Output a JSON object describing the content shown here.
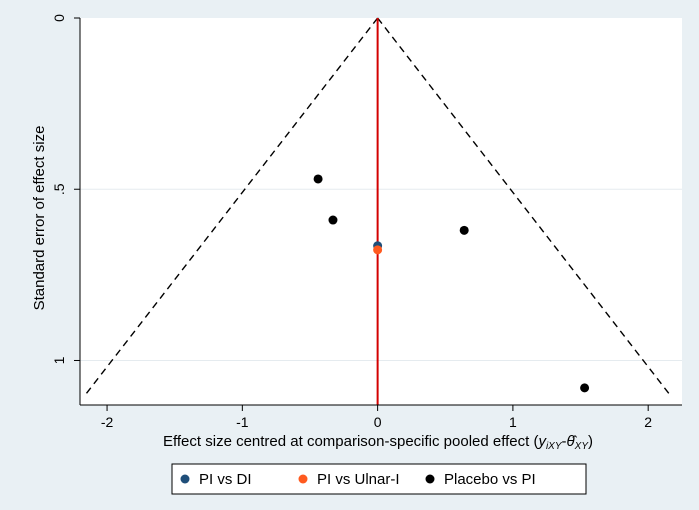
{
  "chart_data": {
    "type": "scatter",
    "title": "",
    "xlabel_main": "Effect size centred at comparison-specific pooled effect (",
    "xlabel_formula": "y",
    "xlabel_sub1": "iXY",
    "xlabel_minus": "-",
    "xlabel_sub2": "XY",
    "xlabel_close": ")",
    "ylabel": "Standard error of effect size",
    "xlim": [
      -2.2,
      2.25
    ],
    "ylim": [
      0,
      1.13
    ],
    "y_reversed": true,
    "xticks": [
      {
        "value": -2,
        "label": "-2"
      },
      {
        "value": -1,
        "label": "-1"
      },
      {
        "value": 0,
        "label": "0"
      },
      {
        "value": 1,
        "label": "1"
      },
      {
        "value": 2,
        "label": "2"
      }
    ],
    "yticks": [
      {
        "value": 0,
        "label": "0"
      },
      {
        "value": 0.5,
        "label": ".5"
      },
      {
        "value": 1,
        "label": "1"
      }
    ],
    "grid": "horizontal",
    "legend_position": "bottom",
    "funnel": {
      "center": 0,
      "bottom_se": 1.1,
      "half_width_at_bottom": 2.16
    },
    "reference_line_x": 0,
    "series": [
      {
        "name": "PI vs DI",
        "color": "#1f4e79",
        "points": [
          {
            "x": 0.0,
            "y": 0.665
          }
        ]
      },
      {
        "name": "PI vs Ulnar-I",
        "color": "#ff5a1f",
        "points": [
          {
            "x": 0.0,
            "y": 0.677
          }
        ]
      },
      {
        "name": "Placebo vs PI",
        "color": "#000000",
        "points": [
          {
            "x": -0.44,
            "y": 0.47
          },
          {
            "x": -0.33,
            "y": 0.59
          },
          {
            "x": 0.64,
            "y": 0.62
          },
          {
            "x": 1.53,
            "y": 1.08
          }
        ]
      }
    ],
    "colors": {
      "background": "#e9f0f4",
      "plot_background": "#ffffff",
      "gridline": "#e5ebef",
      "reference_line": "#d40000",
      "funnel_line": "#000000"
    }
  }
}
